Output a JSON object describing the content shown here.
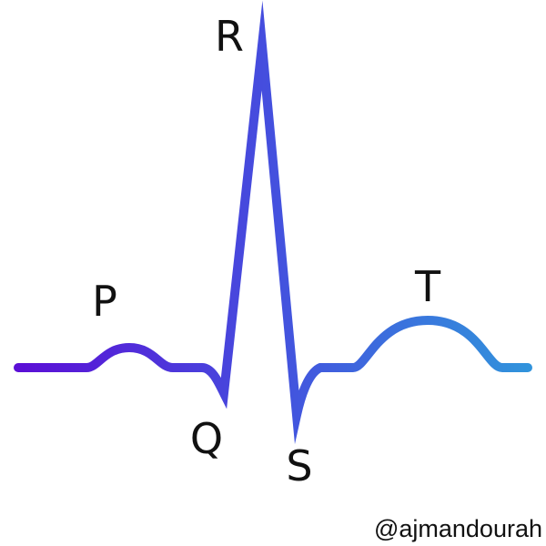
{
  "diagram": {
    "labels": {
      "p": "P",
      "q": "Q",
      "r": "R",
      "s": "S",
      "t": "T"
    },
    "credit": "@ajmandourah",
    "colors": {
      "gradient_start": "#5b0fd6",
      "gradient_mid": "#4450de",
      "gradient_end": "#3193dc",
      "text": "#111111",
      "background": "#ffffff"
    }
  }
}
